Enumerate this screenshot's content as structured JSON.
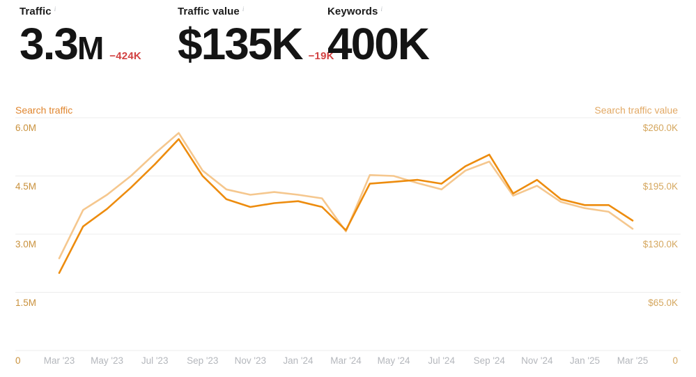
{
  "icons": {
    "info": "i"
  },
  "metrics": [
    {
      "label": "Traffic",
      "value": "3.3",
      "unit": "M",
      "delta": "−424K"
    },
    {
      "label": "Traffic value",
      "value": "$135K",
      "unit": "",
      "delta": "−19K"
    },
    {
      "label": "Keywords",
      "value": "400K",
      "unit": "",
      "delta": ""
    }
  ],
  "colors": {
    "traffic_line": "#ED8C0E",
    "traffic_value_line": "#F5C78E",
    "gridline": "#ececec",
    "delta_negative": "#d24242",
    "left_axis": "#e0862f",
    "right_axis": "#e2a965",
    "x_labels": "#b4b7bc"
  },
  "chart_data": {
    "type": "line",
    "title": "",
    "xlabel": "",
    "ylabel_left": "Search traffic",
    "ylabel_right": "Search traffic value",
    "grid": true,
    "legend_position": "axis-titles",
    "x": [
      "Mar '23",
      "Apr '23",
      "May '23",
      "Jun '23",
      "Jul '23",
      "Aug '23",
      "Sep '23",
      "Oct '23",
      "Nov '23",
      "Dec '23",
      "Jan '24",
      "Feb '24",
      "Mar '24",
      "Apr '24",
      "May '24",
      "Jun '24",
      "Jul '24",
      "Aug '24",
      "Sep '24",
      "Oct '24",
      "Nov '24",
      "Dec '24",
      "Jan '25",
      "Feb '25",
      "Mar '25"
    ],
    "x_ticks": [
      "Mar '23",
      "May '23",
      "Jul '23",
      "Sep '23",
      "Nov '23",
      "Jan '24",
      "Mar '24",
      "May '24",
      "Jul '24",
      "Sep '24",
      "Nov '24",
      "Jan '25",
      "Mar '25"
    ],
    "x_tick_step": 2,
    "series": [
      {
        "name": "Search traffic value",
        "axis": "right",
        "unit": "$K",
        "color": "#F5C78E",
        "values": [
          103,
          157,
          174,
          195,
          220,
          243,
          201,
          180,
          174,
          177,
          174,
          170,
          133,
          196,
          195,
          187,
          180,
          201,
          211,
          173,
          184,
          166,
          159,
          155,
          136
        ]
      },
      {
        "name": "Search traffic",
        "axis": "left",
        "unit": "M",
        "color": "#ED8C0E",
        "values": [
          2.0,
          3.2,
          3.65,
          4.2,
          4.8,
          5.45,
          4.5,
          3.9,
          3.7,
          3.8,
          3.85,
          3.7,
          3.1,
          4.3,
          4.35,
          4.4,
          4.3,
          4.75,
          5.05,
          4.05,
          4.4,
          3.9,
          3.75,
          3.75,
          3.35
        ]
      }
    ],
    "left_axis": {
      "title": "Search traffic",
      "max": 6.0,
      "min": 0,
      "ticks": [
        "6.0M",
        "4.5M",
        "3.0M",
        "1.5M",
        "0"
      ]
    },
    "right_axis": {
      "title": "Search traffic value",
      "max": 260,
      "min": 0,
      "ticks": [
        "$260.0K",
        "$195.0K",
        "$130.0K",
        "$65.0K",
        "0"
      ]
    }
  }
}
